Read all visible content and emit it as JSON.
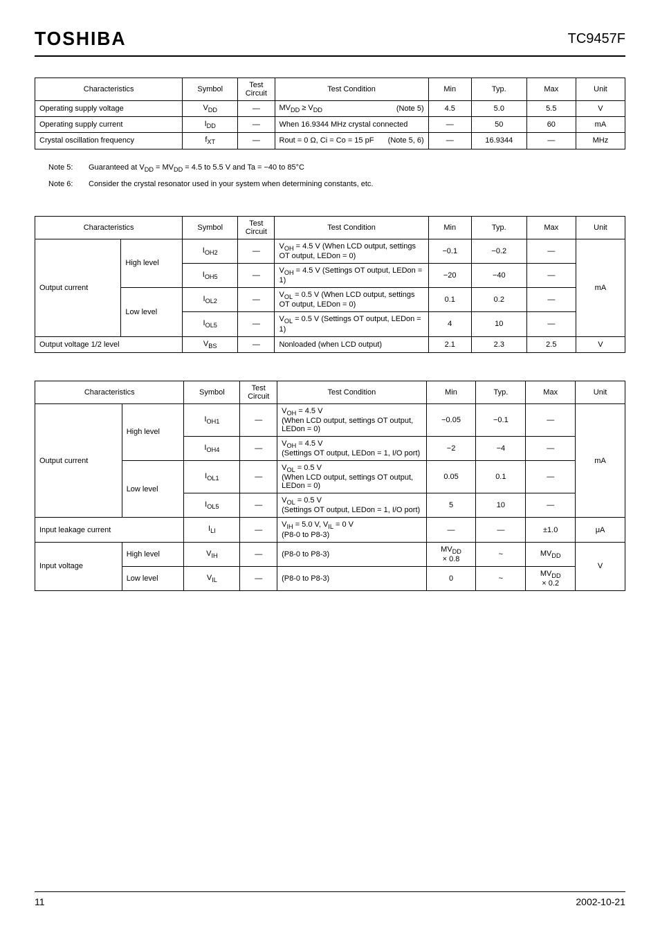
{
  "header": {
    "logo": "TOSHIBA",
    "partnum": "TC9457F"
  },
  "footer": {
    "page": "11",
    "date": "2002-10-21"
  },
  "table1": {
    "headers": [
      "Characteristics",
      "Symbol",
      "Test\nCircuit",
      "Test Condition",
      "Min",
      "Typ.",
      "Max",
      "Unit"
    ],
    "col_widths": [
      "24%",
      "9%",
      "6%",
      "25%",
      "7%",
      "9%",
      "8%",
      "8%"
    ],
    "rows": [
      {
        "char": "Operating supply voltage",
        "sym": "V<sub>DD</sub>",
        "tc": "—",
        "cond": "MV<sub>DD</sub> ≥ V<sub>DD</sub>",
        "cond2": "(Note 5)",
        "min": "4.5",
        "typ": "5.0",
        "max": "5.5",
        "unit": "V"
      },
      {
        "char": "Operating supply current",
        "sym": "I<sub>DD</sub>",
        "tc": "—",
        "cond": "When 16.9344 MHz crystal connected",
        "min": "—",
        "typ": "50",
        "max": "60",
        "unit": "mA"
      },
      {
        "char": "Crystal oscillation frequency",
        "sym": "f<sub>XT</sub>",
        "tc": "—",
        "cond": "Rout = 0 Ω, Ci = Co = 15 pF",
        "cond2": "(Note 5, 6)",
        "min": "—",
        "typ": "16.9344",
        "max": "—",
        "unit": "MHz"
      }
    ]
  },
  "notes": [
    {
      "num": "Note 5:",
      "txt": "Guaranteed at V<sub>DD</sub> = MV<sub>DD</sub> = 4.5 to 5.5 V and Ta = −40 to 85°C"
    },
    {
      "num": "Note 6:",
      "txt": "Consider the crystal resonator used in your system when determining constants, etc."
    }
  ],
  "table2": {
    "headers": [
      "Characteristics",
      "Symbol",
      "Test\nCircuit",
      "Test Condition",
      "Min",
      "Typ.",
      "Max",
      "Unit"
    ],
    "col_widths": [
      "14%",
      "10%",
      "9%",
      "6%",
      "25%",
      "7%",
      "9%",
      "8%",
      "8%"
    ],
    "rows": [
      {
        "group": "Output current",
        "level": "High level",
        "sym": "I<sub>OH2</sub>",
        "tc": "—",
        "cond": "V<sub>OH</sub> = 4.5 V (When LCD output, settings OT output, LEDon = 0)",
        "min": "−0.1",
        "typ": "−0.2",
        "max": "—"
      },
      {
        "sym": "I<sub>OH5</sub>",
        "tc": "—",
        "cond": "V<sub>OH</sub> = 4.5 V (Settings OT output, LEDon = 1)",
        "min": "−20",
        "typ": "−40",
        "max": "—"
      },
      {
        "level": "Low level",
        "sym": "I<sub>OL2</sub>",
        "tc": "—",
        "cond": "V<sub>OL</sub> = 0.5 V (When LCD output, settings OT output, LEDon = 0)",
        "min": "0.1",
        "typ": "0.2",
        "max": "—"
      },
      {
        "sym": "I<sub>OL5</sub>",
        "tc": "—",
        "cond": "V<sub>OL</sub> = 0.5 V (Settings OT output, LEDon = 1)",
        "min": "4",
        "typ": "10",
        "max": "—"
      }
    ],
    "unit": "mA",
    "vbs": {
      "char": "Output voltage 1/2 level",
      "sym": "V<sub>BS</sub>",
      "tc": "—",
      "cond": "Nonloaded (when LCD output)",
      "min": "2.1",
      "typ": "2.3",
      "max": "2.5",
      "unit": "V"
    }
  },
  "table3": {
    "headers": [
      "Characteristics",
      "Symbol",
      "Test\nCircuit",
      "Test Condition",
      "Min",
      "Typ.",
      "Max",
      "Unit"
    ],
    "col_widths": [
      "14%",
      "10%",
      "9%",
      "6%",
      "24%",
      "8%",
      "8%",
      "8%",
      "8%"
    ],
    "oc_rows": [
      {
        "group": "Output current",
        "level": "High level",
        "sym": "I<sub>OH1</sub>",
        "tc": "—",
        "cond": "V<sub>OH</sub> = 4.5 V<br>(When LCD output, settings OT output, LEDon = 0)",
        "min": "−0.05",
        "typ": "−0.1",
        "max": "—"
      },
      {
        "sym": "I<sub>OH4</sub>",
        "tc": "—",
        "cond": "V<sub>OH</sub> = 4.5 V<br>(Settings OT output, LEDon = 1, I/O port)",
        "min": "−2",
        "typ": "−4",
        "max": "—"
      },
      {
        "level": "Low level",
        "sym": "I<sub>OL1</sub>",
        "tc": "—",
        "cond": "V<sub>OL</sub> = 0.5 V<br>(When LCD output, settings OT output, LEDon = 0)",
        "min": "0.05",
        "typ": "0.1",
        "max": "—"
      },
      {
        "sym": "I<sub>OL5</sub>",
        "tc": "—",
        "cond": "V<sub>OL</sub> = 0.5 V<br>(Settings OT output, LEDon = 1, I/O port)",
        "min": "5",
        "typ": "10",
        "max": "—"
      }
    ],
    "oc_unit": "mA",
    "ilc": {
      "char": "Input leakage current",
      "sym": "I<sub>LI</sub>",
      "tc": "—",
      "cond": "V<sub>IH</sub> = 5.0 V, V<sub>IL</sub> = 0 V<br>(P8-0 to P8-3)",
      "min": "—",
      "typ": "—",
      "max": "±1.0",
      "unit": "μA"
    },
    "iv_rows": [
      {
        "group": "Input voltage",
        "level": "High level",
        "sym": "V<sub>IH</sub>",
        "tc": "—",
        "cond": "(P8-0 to P8-3)",
        "min": "MV<sub>DD</sub><br>× 0.8",
        "typ": "~",
        "max": "MV<sub>DD</sub>"
      },
      {
        "level": "Low level",
        "sym": "V<sub>IL</sub>",
        "tc": "—",
        "cond": "(P8-0 to P8-3)",
        "min": "0",
        "typ": "~",
        "max": "MV<sub>DD</sub><br>× 0.2"
      }
    ],
    "iv_unit": "V"
  }
}
